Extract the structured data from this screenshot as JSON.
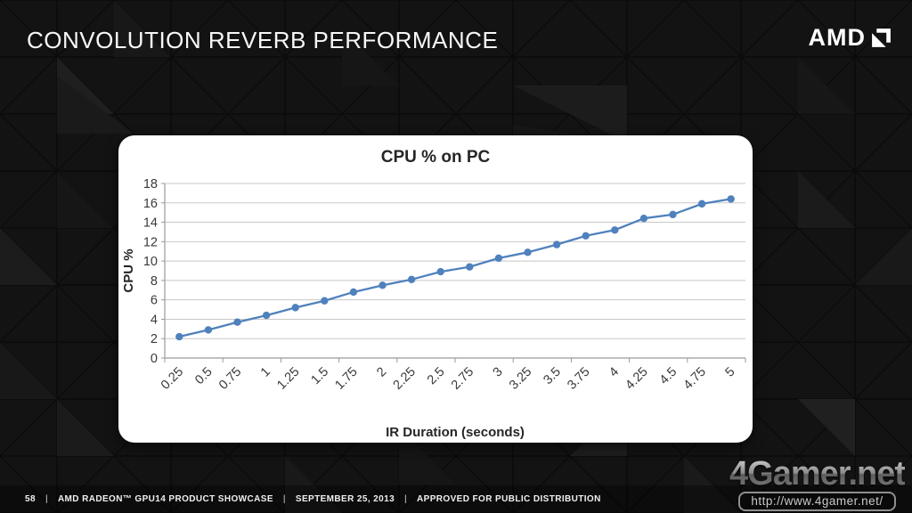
{
  "slide": {
    "title": "CONVOLUTION REVERB PERFORMANCE",
    "brand": "AMD",
    "page_number": "58",
    "separator": "|",
    "footer_items": [
      "AMD RADEON™ GPU14 PRODUCT SHOWCASE",
      "SEPTEMBER 25, 2013",
      "APPROVED FOR PUBLIC DISTRIBUTION"
    ]
  },
  "watermark": {
    "logo_text": "4Gamer.net",
    "url": "http://www.4gamer.net/"
  },
  "chart_data": {
    "type": "line",
    "title": "CPU % on PC",
    "xlabel": "IR Duration (seconds)",
    "ylabel": "CPU %",
    "categories": [
      "0.25",
      "0.5",
      "0.75",
      "1",
      "1.25",
      "1.5",
      "1.75",
      "2",
      "2.25",
      "2.5",
      "2.75",
      "3",
      "3.25",
      "3.5",
      "3.75",
      "4",
      "4.25",
      "4.5",
      "4.75",
      "5"
    ],
    "values": [
      2.2,
      2.9,
      3.7,
      4.4,
      5.2,
      5.9,
      6.8,
      7.5,
      8.1,
      8.9,
      9.4,
      10.3,
      10.9,
      11.7,
      12.6,
      13.2,
      14.4,
      14.8,
      15.9,
      16.4
    ],
    "ylim": [
      0,
      18
    ],
    "ytick_step": 2,
    "grid": true,
    "legend_position": "none",
    "marker": "circle"
  },
  "colors": {
    "slide_background": "#121212",
    "card_background": "#FFFFFF",
    "title_text": "#F7F7F7",
    "chart_line": "#4F81BD",
    "chart_text": "#3A3A3A",
    "chart_title_text": "#262626",
    "gridline": "#C8C8C8",
    "axis_line": "#9A9A9A"
  }
}
